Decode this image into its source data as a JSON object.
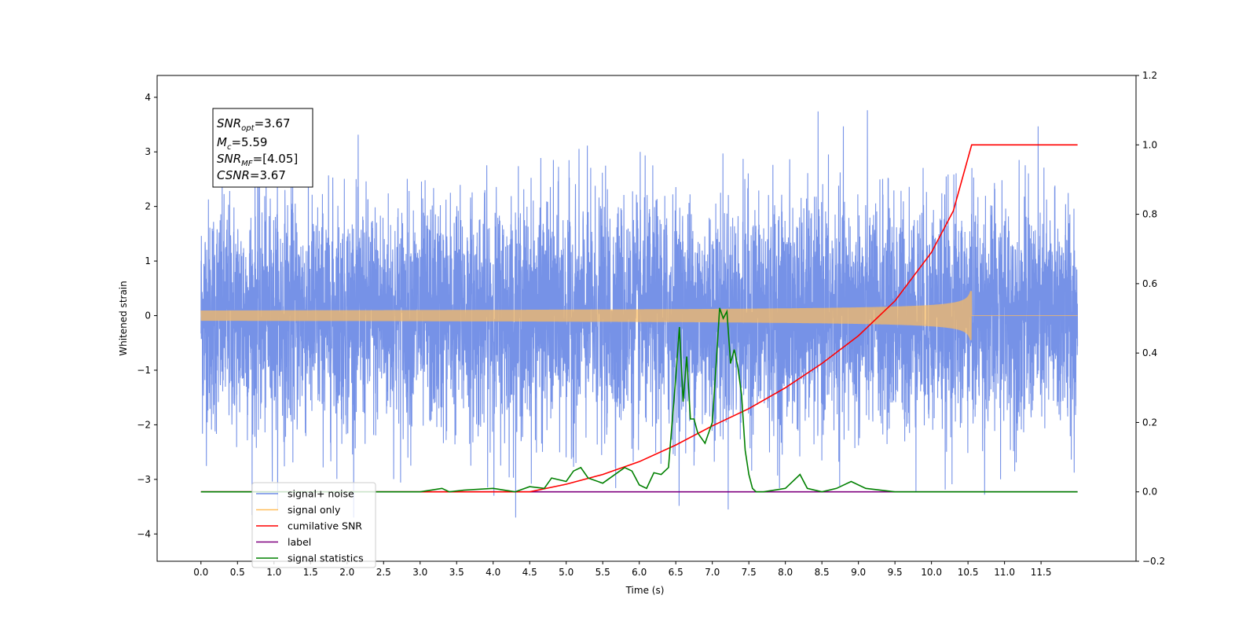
{
  "chart_data": {
    "type": "line",
    "xlabel": "Time (s)",
    "ylabel": "Whitened strain",
    "xlim": [
      -0.6,
      12.8
    ],
    "ylim": [
      -4.5,
      4.4
    ],
    "ylim_right": [
      -0.2,
      1.2
    ],
    "x_ticks": [
      "0.0",
      "0.5",
      "1.0",
      "1.5",
      "2.0",
      "2.5",
      "3.0",
      "3.5",
      "4.0",
      "4.5",
      "5.0",
      "5.5",
      "6.0",
      "6.5",
      "7.0",
      "7.5",
      "8.0",
      "8.5",
      "9.0",
      "9.5",
      "10.0",
      "10.5",
      "11.0",
      "11.5"
    ],
    "y_ticks": [
      "4",
      "3",
      "2",
      "1",
      "0",
      "−1",
      "−2",
      "−3",
      "−4"
    ],
    "y_ticks_right": [
      "1.2",
      "1.0",
      "0.8",
      "0.6",
      "0.4",
      "0.2",
      "0.0",
      "−0.2"
    ],
    "grid": false,
    "legend_position": "lower-left",
    "annotation": {
      "snr_opt": {
        "sym": "SNR",
        "sub": "opt",
        "val": "=3.67"
      },
      "mc": {
        "sym": "M",
        "sub": "c",
        "val": "=5.59"
      },
      "snr_mf": {
        "sym": "SNR",
        "sub": "MF",
        "val": "=[4.05]"
      },
      "csnr": {
        "sym": "CSNR",
        "val": "=3.67"
      }
    },
    "series": [
      {
        "name": "signal+ noise",
        "color": "#6f8ce6",
        "axis": "left",
        "description_range": [
          -3.7,
          4.0
        ],
        "x_range": [
          0.0,
          12.0
        ]
      },
      {
        "name": "signal only",
        "color": "#ffbe5c",
        "axis": "left",
        "merger_time": 10.55,
        "peak_amplitude": 0.45
      },
      {
        "name": "cumilative SNR",
        "color": "#ff0000",
        "axis": "right",
        "x": [
          0.0,
          4.5,
          5.0,
          5.5,
          6.0,
          6.5,
          7.0,
          7.5,
          8.0,
          8.5,
          9.0,
          9.5,
          10.0,
          10.3,
          10.55,
          11.0,
          12.0
        ],
        "y": [
          0.0,
          0.0,
          0.022,
          0.05,
          0.087,
          0.135,
          0.19,
          0.24,
          0.3,
          0.37,
          0.45,
          0.55,
          0.69,
          0.81,
          1.0,
          1.0,
          1.0
        ]
      },
      {
        "name": "label",
        "color": "#800080",
        "axis": "right",
        "x": [
          0.0,
          12.0
        ],
        "y": [
          0.0,
          0.0
        ]
      },
      {
        "name": "signal statistics",
        "color": "#008000",
        "axis": "right",
        "x": [
          0.0,
          3.0,
          3.3,
          3.4,
          3.6,
          4.0,
          4.3,
          4.5,
          4.7,
          4.8,
          5.0,
          5.1,
          5.2,
          5.3,
          5.5,
          5.8,
          5.9,
          6.0,
          6.1,
          6.2,
          6.3,
          6.4,
          6.5,
          6.55,
          6.6,
          6.65,
          6.7,
          6.75,
          6.8,
          6.9,
          7.0,
          7.05,
          7.1,
          7.15,
          7.2,
          7.25,
          7.3,
          7.35,
          7.4,
          7.45,
          7.5,
          7.55,
          7.6,
          7.7,
          8.0,
          8.2,
          8.3,
          8.5,
          8.7,
          8.9,
          9.1,
          9.5,
          12.0
        ],
        "y": [
          0.0,
          0.0,
          0.01,
          0.0,
          0.005,
          0.01,
          0.0,
          0.015,
          0.01,
          0.04,
          0.03,
          0.06,
          0.07,
          0.04,
          0.025,
          0.07,
          0.06,
          0.02,
          0.01,
          0.055,
          0.05,
          0.07,
          0.33,
          0.475,
          0.26,
          0.39,
          0.21,
          0.21,
          0.17,
          0.14,
          0.2,
          0.36,
          0.53,
          0.5,
          0.52,
          0.37,
          0.41,
          0.36,
          0.28,
          0.12,
          0.05,
          0.01,
          0.0,
          0.0,
          0.01,
          0.05,
          0.01,
          0.0,
          0.01,
          0.03,
          0.01,
          0.0,
          0.0
        ]
      }
    ]
  }
}
